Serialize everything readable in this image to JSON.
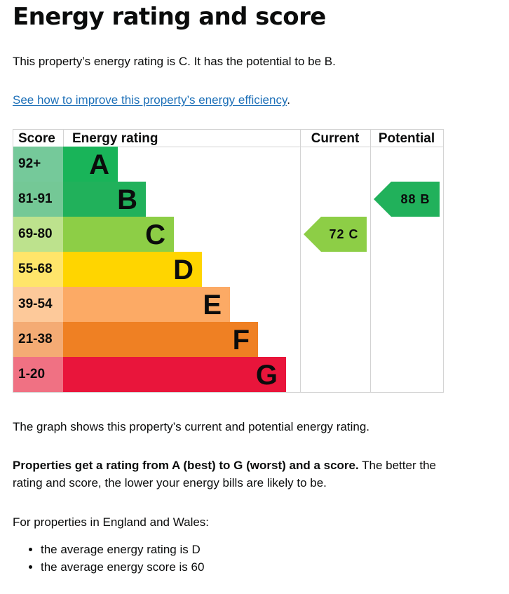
{
  "page": {
    "title": "Energy rating and score",
    "summary": "This property’s energy rating is C. It has the potential to be B.",
    "improve_link": "See how to improve this property’s energy efficiency",
    "improve_suffix": ".",
    "graph_description": "The graph shows this property’s current and potential energy rating.",
    "ratings_bold": "Properties get a rating from A (best) to G (worst) and a score.",
    "ratings_rest": " The better the rating and score, the lower your energy bills are likely to be.",
    "average_intro": "For properties in England and Wales:",
    "average_items": [
      "the average energy rating is D",
      "the average energy score is 60"
    ]
  },
  "chart_data": {
    "type": "bar",
    "headers": {
      "score": "Score",
      "energy_rating": "Energy rating",
      "current": "Current",
      "potential": "Potential"
    },
    "bands": [
      {
        "score": "92+",
        "letter": "A",
        "color": "#19b459",
        "score_bg": "#75c99a"
      },
      {
        "score": "81-91",
        "letter": "B",
        "color": "#21b15b",
        "score_bg": "#74c896"
      },
      {
        "score": "69-80",
        "letter": "C",
        "color": "#8dce46",
        "score_bg": "#bde28d"
      },
      {
        "score": "55-68",
        "letter": "D",
        "color": "#ffd500",
        "score_bg": "#ffe56a"
      },
      {
        "score": "39-54",
        "letter": "E",
        "color": "#fcaa65",
        "score_bg": "#fdc99a"
      },
      {
        "score": "21-38",
        "letter": "F",
        "color": "#ef8023",
        "score_bg": "#f4ab74"
      },
      {
        "score": "1-20",
        "letter": "G",
        "color": "#e9153b",
        "score_bg": "#f07183"
      }
    ],
    "current": {
      "score": 72,
      "letter": "C",
      "label": "72 C",
      "color": "#8dce46"
    },
    "potential": {
      "score": 88,
      "letter": "B",
      "label": "88 B",
      "color": "#21b15b"
    }
  }
}
